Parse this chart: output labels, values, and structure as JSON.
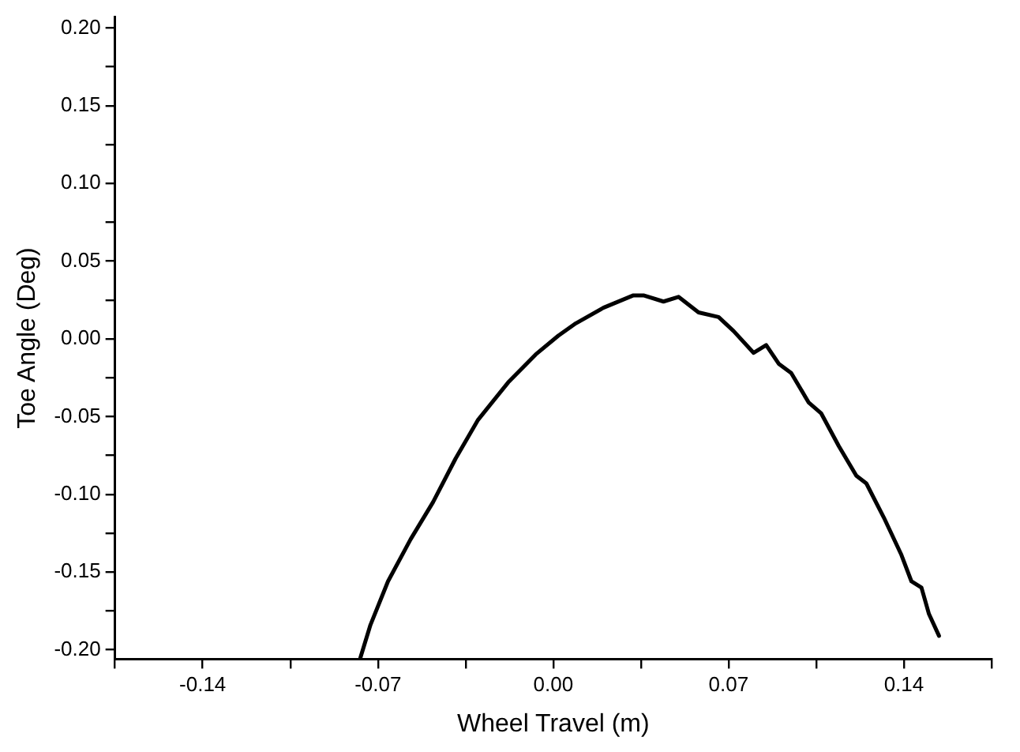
{
  "chart_data": {
    "type": "line",
    "xlabel": "Wheel Travel (m)",
    "ylabel": "Toe Angle (Deg)",
    "color": "#000000",
    "marker": "none",
    "line_style": "solid",
    "grid": false,
    "legend": false,
    "x": [
      -0.077,
      -0.073,
      -0.066,
      -0.057,
      -0.048,
      -0.039,
      -0.03,
      -0.018,
      -0.007,
      0.002,
      0.009,
      0.02,
      0.032,
      0.036,
      0.044,
      0.05,
      0.058,
      0.066,
      0.072,
      0.08,
      0.085,
      0.09,
      0.095,
      0.102,
      0.107,
      0.114,
      0.121,
      0.125,
      0.132,
      0.139,
      0.143,
      0.147,
      0.15,
      0.154
    ],
    "values": [
      -0.205,
      -0.184,
      -0.156,
      -0.129,
      -0.105,
      -0.077,
      -0.052,
      -0.028,
      -0.01,
      0.002,
      0.01,
      0.02,
      0.028,
      0.028,
      0.024,
      0.027,
      0.017,
      0.014,
      0.005,
      -0.009,
      -0.004,
      -0.016,
      -0.022,
      -0.041,
      -0.048,
      -0.069,
      -0.088,
      -0.093,
      -0.115,
      -0.139,
      -0.156,
      -0.16,
      -0.177,
      -0.191
    ],
    "xlim": [
      -0.175,
      0.175
    ],
    "xticks": [
      {
        "value": -0.175,
        "label": null
      },
      "-0.14",
      {
        "value": -0.105,
        "label": null
      },
      {
        "value": -0.07,
        "label": "-0.07"
      },
      {
        "value": -0.035,
        "label": null
      },
      {
        "value": 0,
        "label": "0.00"
      },
      {
        "value": 0.035,
        "label": null
      },
      {
        "value": 0.07,
        "label": "0.07"
      },
      {
        "value": 0.105,
        "label": null
      },
      {
        "value": 0.14,
        "label": "0.14"
      },
      {
        "value": 0.175,
        "label": null
      }
    ],
    "ylim": [
      -0.206,
      0.207
    ],
    "yticks": [
      {
        "value": -0.2,
        "label": "-0.20"
      },
      {
        "value": -0.175,
        "label": null
      },
      {
        "value": -0.15,
        "label": "-0.15"
      },
      {
        "value": -0.125,
        "label": null
      },
      {
        "value": -0.1,
        "label": "-0.10"
      },
      {
        "value": -0.075,
        "label": null
      },
      {
        "value": -0.05,
        "label": "-0.05"
      },
      {
        "value": -0.025,
        "label": null
      },
      {
        "value": 0,
        "label": "0.00"
      },
      {
        "value": 0.025,
        "label": null
      },
      {
        "value": 0.05,
        "label": "0.05"
      },
      {
        "value": 0.075,
        "label": null
      },
      {
        "value": 0.1,
        "label": "0.10"
      },
      {
        "value": 0.125,
        "label": null
      },
      {
        "value": 0.15,
        "label": "0.15"
      },
      {
        "value": 0.175,
        "label": null
      },
      {
        "value": 0.2,
        "label": "0.20"
      }
    ]
  }
}
